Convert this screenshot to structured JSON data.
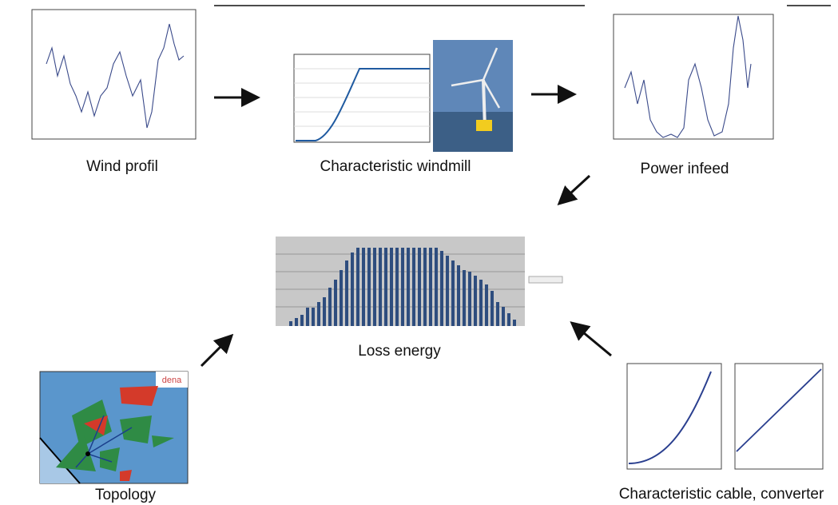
{
  "nodes": [
    {
      "label": "Wind profil"
    },
    {
      "label": "Characteristic windmill"
    },
    {
      "label": "Power infeed"
    },
    {
      "label": "Loss energy"
    },
    {
      "label": "Topology",
      "logo": "dena"
    },
    {
      "label": "Characteristic cable, converter"
    }
  ]
}
